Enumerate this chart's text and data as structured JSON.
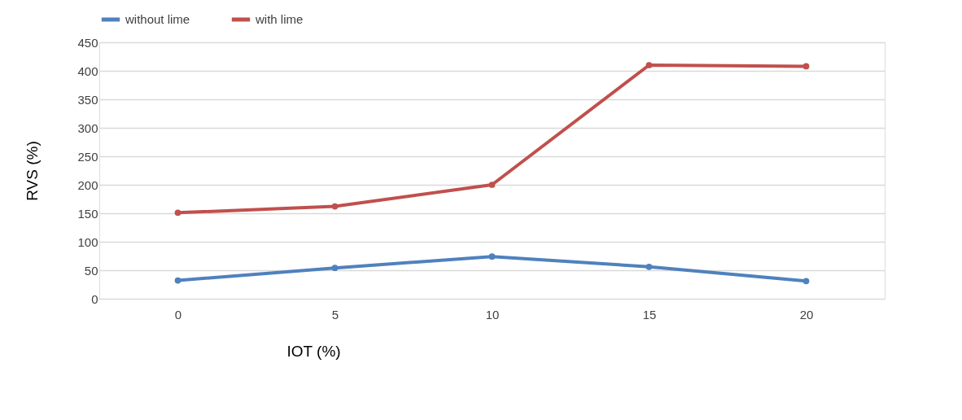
{
  "chart_data": {
    "type": "line",
    "xlabel": "IOT (%)",
    "ylabel": "RVS (%)",
    "categories": [
      "0",
      "5",
      "10",
      "15",
      "20"
    ],
    "series": [
      {
        "name": "without lime",
        "color": "#4f81bd",
        "values": [
          32,
          54,
          74,
          56,
          31
        ]
      },
      {
        "name": "with lime",
        "color": "#c0504d",
        "values": [
          151,
          162,
          200,
          410,
          408
        ]
      }
    ],
    "ylim": [
      0,
      450
    ],
    "yticks": [
      0,
      50,
      100,
      150,
      200,
      250,
      300,
      350,
      400,
      450
    ],
    "grid": "y",
    "legend": "top",
    "marker": "circle",
    "line_style": "solid"
  }
}
